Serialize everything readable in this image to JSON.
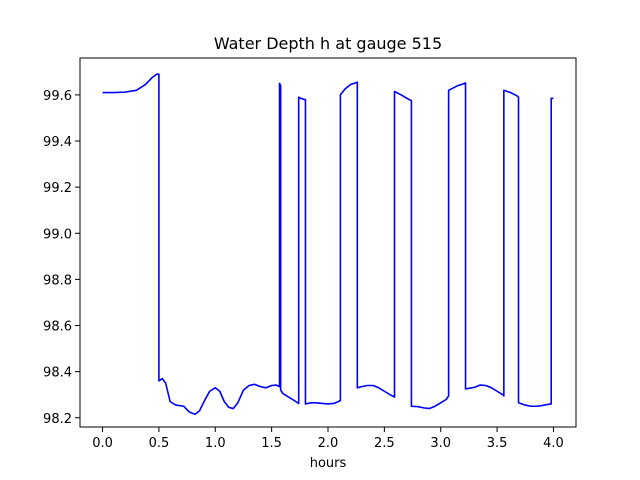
{
  "chart_data": {
    "type": "line",
    "title": "Water Depth h at gauge 515",
    "xlabel": "hours",
    "ylabel": "",
    "xlim": [
      -0.2,
      4.2
    ],
    "ylim": [
      98.16,
      99.76
    ],
    "xticks": [
      0.0,
      0.5,
      1.0,
      1.5,
      2.0,
      2.5,
      3.0,
      3.5,
      4.0
    ],
    "xtick_labels": [
      "0.0",
      "0.5",
      "1.0",
      "1.5",
      "2.0",
      "2.5",
      "3.0",
      "3.5",
      "4.0"
    ],
    "yticks": [
      98.2,
      98.4,
      98.6,
      98.8,
      99.0,
      99.2,
      99.4,
      99.6
    ],
    "ytick_labels": [
      "98.2",
      "98.4",
      "98.6",
      "98.8",
      "99.0",
      "99.2",
      "99.4",
      "99.6"
    ],
    "grid": false,
    "series": [
      {
        "color": "#0000ff",
        "x": [
          0.0,
          0.1,
          0.2,
          0.3,
          0.38,
          0.44,
          0.48,
          0.5,
          0.5,
          0.53,
          0.56,
          0.6,
          0.65,
          0.72,
          0.77,
          0.82,
          0.86,
          0.9,
          0.95,
          1.0,
          1.04,
          1.08,
          1.12,
          1.16,
          1.2,
          1.25,
          1.3,
          1.35,
          1.4,
          1.45,
          1.5,
          1.54,
          1.57,
          1.57,
          1.58,
          1.58,
          1.6,
          1.65,
          1.7,
          1.74,
          1.74,
          1.76,
          1.79,
          1.8,
          1.8,
          1.85,
          1.9,
          1.95,
          2.0,
          2.05,
          2.09,
          2.11,
          2.11,
          2.15,
          2.2,
          2.26,
          2.26,
          2.3,
          2.35,
          2.4,
          2.45,
          2.5,
          2.55,
          2.59,
          2.59,
          2.65,
          2.7,
          2.74,
          2.74,
          2.8,
          2.85,
          2.9,
          2.95,
          3.0,
          3.05,
          3.07,
          3.07,
          3.15,
          3.2,
          3.22,
          3.22,
          3.3,
          3.35,
          3.4,
          3.45,
          3.5,
          3.55,
          3.56,
          3.56,
          3.62,
          3.68,
          3.69,
          3.69,
          3.75,
          3.8,
          3.85,
          3.9,
          3.95,
          3.98,
          3.98,
          4.0
        ],
        "y": [
          99.61,
          99.61,
          99.612,
          99.62,
          99.645,
          99.675,
          99.69,
          99.69,
          98.36,
          98.37,
          98.35,
          98.27,
          98.255,
          98.25,
          98.225,
          98.215,
          98.23,
          98.27,
          98.315,
          98.33,
          98.315,
          98.27,
          98.245,
          98.24,
          98.265,
          98.32,
          98.34,
          98.345,
          98.335,
          98.33,
          98.34,
          98.342,
          98.335,
          99.65,
          99.64,
          98.32,
          98.305,
          98.29,
          98.275,
          98.262,
          99.59,
          99.585,
          99.58,
          99.58,
          98.26,
          98.265,
          98.265,
          98.262,
          98.26,
          98.262,
          98.27,
          98.275,
          99.6,
          99.625,
          99.645,
          99.655,
          98.33,
          98.335,
          98.34,
          98.34,
          98.33,
          98.315,
          98.3,
          98.29,
          99.615,
          99.6,
          99.585,
          99.575,
          98.25,
          98.248,
          98.243,
          98.24,
          98.25,
          98.265,
          98.28,
          98.295,
          99.62,
          99.64,
          99.648,
          99.652,
          98.325,
          98.332,
          98.342,
          98.34,
          98.33,
          98.315,
          98.3,
          98.295,
          99.62,
          99.61,
          99.595,
          99.59,
          98.265,
          98.255,
          98.25,
          98.25,
          98.253,
          98.258,
          98.26,
          99.585,
          99.585
        ]
      }
    ]
  }
}
